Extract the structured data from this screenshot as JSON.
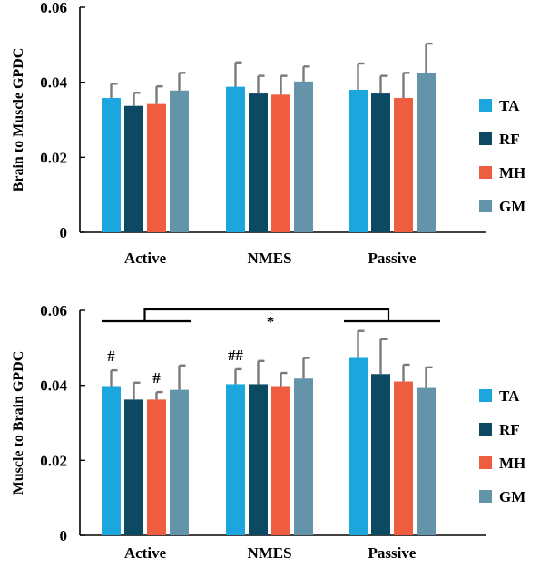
{
  "chart_data": [
    {
      "type": "bar",
      "title": "",
      "xlabel": "",
      "ylabel": "Brain  to Muscle GPDC",
      "ylim": [
        0,
        0.06
      ],
      "yticks": [
        "0",
        "0.02",
        "0.04",
        "0.06"
      ],
      "categories": [
        "Active",
        "NMES",
        "Passive"
      ],
      "series": [
        {
          "name": "TA",
          "color": "#1BA7DE",
          "values": [
            0.0358,
            0.0388,
            0.038
          ],
          "errors": [
            0.0038,
            0.0065,
            0.007
          ]
        },
        {
          "name": "RF",
          "color": "#0C4A63",
          "values": [
            0.0337,
            0.037,
            0.037
          ],
          "errors": [
            0.0035,
            0.0047,
            0.0047
          ]
        },
        {
          "name": "MH",
          "color": "#EE5D3F",
          "values": [
            0.0342,
            0.0367,
            0.0358
          ],
          "errors": [
            0.0047,
            0.005,
            0.0067
          ]
        },
        {
          "name": "GM",
          "color": "#6494AA",
          "values": [
            0.0378,
            0.0402,
            0.0425
          ],
          "errors": [
            0.0047,
            0.004,
            0.0078
          ]
        }
      ],
      "legend_position": "right",
      "grid": false
    },
    {
      "type": "bar",
      "title": "",
      "xlabel": "",
      "ylabel": "Muscle to Brain  GPDC",
      "ylim": [
        0,
        0.06
      ],
      "yticks": [
        "0",
        "0.02",
        "0.04",
        "0.06"
      ],
      "categories": [
        "Active",
        "NMES",
        "Passive"
      ],
      "series": [
        {
          "name": "TA",
          "color": "#1BA7DE",
          "values": [
            0.0398,
            0.0403,
            0.0473
          ],
          "errors": [
            0.0042,
            0.004,
            0.0072
          ]
        },
        {
          "name": "RF",
          "color": "#0C4A63",
          "values": [
            0.0362,
            0.0403,
            0.043
          ],
          "errors": [
            0.0045,
            0.0062,
            0.0093
          ]
        },
        {
          "name": "MH",
          "color": "#EE5D3F",
          "values": [
            0.0362,
            0.0398,
            0.041
          ],
          "errors": [
            0.002,
            0.0035,
            0.0045
          ]
        },
        {
          "name": "GM",
          "color": "#6494AA",
          "values": [
            0.0388,
            0.0418,
            0.0393
          ],
          "errors": [
            0.0065,
            0.0055,
            0.0055
          ]
        }
      ],
      "legend_position": "right",
      "grid": false,
      "annotations": [
        {
          "text": "#",
          "category": "Active",
          "series": "TA"
        },
        {
          "text": "#",
          "category": "Active",
          "series": "MH"
        },
        {
          "text": "##",
          "category": "NMES",
          "series": "TA"
        },
        {
          "text": "*",
          "between": [
            "Active",
            "Passive"
          ]
        }
      ]
    }
  ]
}
